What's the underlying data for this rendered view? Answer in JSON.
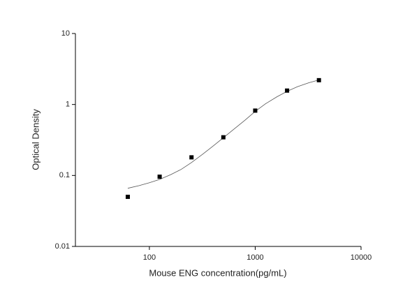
{
  "chart_data": {
    "type": "scatter",
    "x_label": "Mouse ENG concentration(pg/mL)",
    "y_label": "Optical Density",
    "xscale": "log",
    "yscale": "log",
    "xlim": [
      20,
      10000
    ],
    "ylim": [
      0.01,
      10
    ],
    "xticks": [
      100,
      1000,
      10000
    ],
    "yticks": [
      0.01,
      0.1,
      1,
      10
    ],
    "series": [
      {
        "x": [
          62.5,
          125,
          250,
          500,
          1000,
          2000,
          4000
        ],
        "values": [
          0.05,
          0.096,
          0.18,
          0.345,
          0.82,
          1.57,
          2.2
        ],
        "color": "#000000"
      }
    ],
    "fit_curve": {
      "color": "#555555",
      "x": [
        62.5,
        80,
        100,
        125,
        160,
        200,
        250,
        320,
        400,
        500,
        630,
        800,
        1000,
        1260,
        1600,
        2000,
        2500,
        3200,
        4000
      ],
      "values": [
        0.066,
        0.072,
        0.079,
        0.088,
        0.103,
        0.122,
        0.152,
        0.2,
        0.26,
        0.34,
        0.45,
        0.6,
        0.8,
        1.03,
        1.28,
        1.53,
        1.78,
        2.02,
        2.22
      ]
    }
  }
}
